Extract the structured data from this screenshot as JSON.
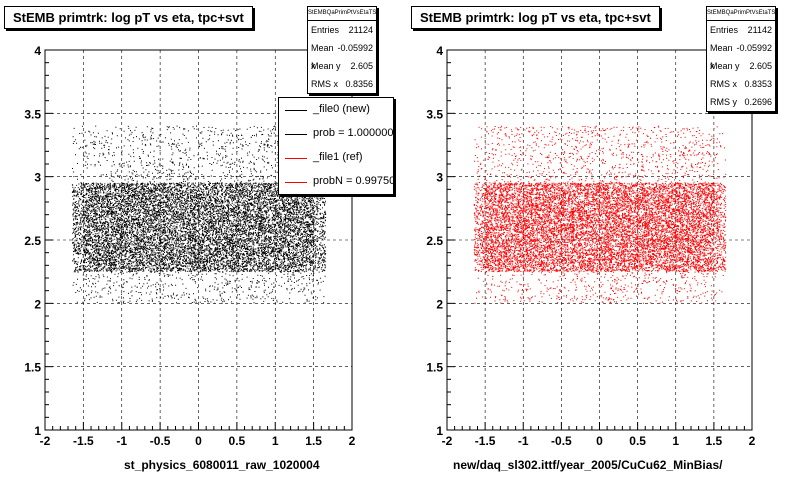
{
  "chart_data": [
    {
      "type": "scatter",
      "title": "StEMB primtrk: log pT vs eta, tpc+svt",
      "xlabel": "st_physics_6080011_raw_1020004",
      "ylabel": "",
      "xlim": [
        -2,
        2
      ],
      "ylim": [
        1,
        4
      ],
      "x_ticks": [
        "-2",
        "-1.5",
        "-1",
        "-0.5",
        "0",
        "0.5",
        "1",
        "1.5",
        "2"
      ],
      "y_ticks": [
        "1",
        "1.5",
        "2",
        "2.5",
        "3",
        "3.5",
        "4"
      ],
      "grid": true,
      "point_color": "#000000",
      "point_region": {
        "x": [
          -1.65,
          1.65
        ],
        "y": [
          2.0,
          3.4
        ],
        "core_y": [
          2.25,
          2.95
        ]
      },
      "stats": {
        "header": "StEMBQaPrimPtVsEtaTS",
        "rows": [
          {
            "label": "Entries",
            "value": "21124"
          },
          {
            "label": "Mean x",
            "value": "-0.05992"
          },
          {
            "label": "Mean y",
            "value": "2.605"
          },
          {
            "label": "RMS x",
            "value": "0.8356"
          }
        ]
      },
      "legend": {
        "placement": "top-right",
        "entries": [
          {
            "text": "_file0 (new)",
            "color": "#000000"
          },
          {
            "text": "prob = 1.000000",
            "color": "#000000"
          },
          {
            "text": "_file1 (ref)",
            "color": "#ff0000"
          },
          {
            "text": "probN = 0.997500",
            "color": "#ff0000"
          }
        ]
      }
    },
    {
      "type": "scatter",
      "title": "StEMB primtrk: log pT vs eta, tpc+svt",
      "xlabel": "new/daq_sl302.ittf/year_2005/CuCu62_MinBias/",
      "ylabel": "",
      "xlim": [
        -2,
        2
      ],
      "ylim": [
        1,
        4
      ],
      "x_ticks": [
        "-2",
        "-1.5",
        "-1",
        "-0.5",
        "0",
        "0.5",
        "1",
        "1.5",
        "2"
      ],
      "y_ticks": [
        "1",
        "1.5",
        "2",
        "2.5",
        "3",
        "3.5",
        "4"
      ],
      "grid": true,
      "point_color": "#ff0000",
      "point_region": {
        "x": [
          -1.65,
          1.65
        ],
        "y": [
          2.0,
          3.4
        ],
        "core_y": [
          2.25,
          2.95
        ]
      },
      "stats": {
        "header": "StEMBQaPrimPtVsEtaTS",
        "rows": [
          {
            "label": "Entries",
            "value": "21142"
          },
          {
            "label": "Mean x",
            "value": "-0.05992"
          },
          {
            "label": "Mean y",
            "value": "2.605"
          },
          {
            "label": "RMS x",
            "value": "0.8353"
          },
          {
            "label": "RMS y",
            "value": "0.2696"
          }
        ]
      }
    }
  ]
}
